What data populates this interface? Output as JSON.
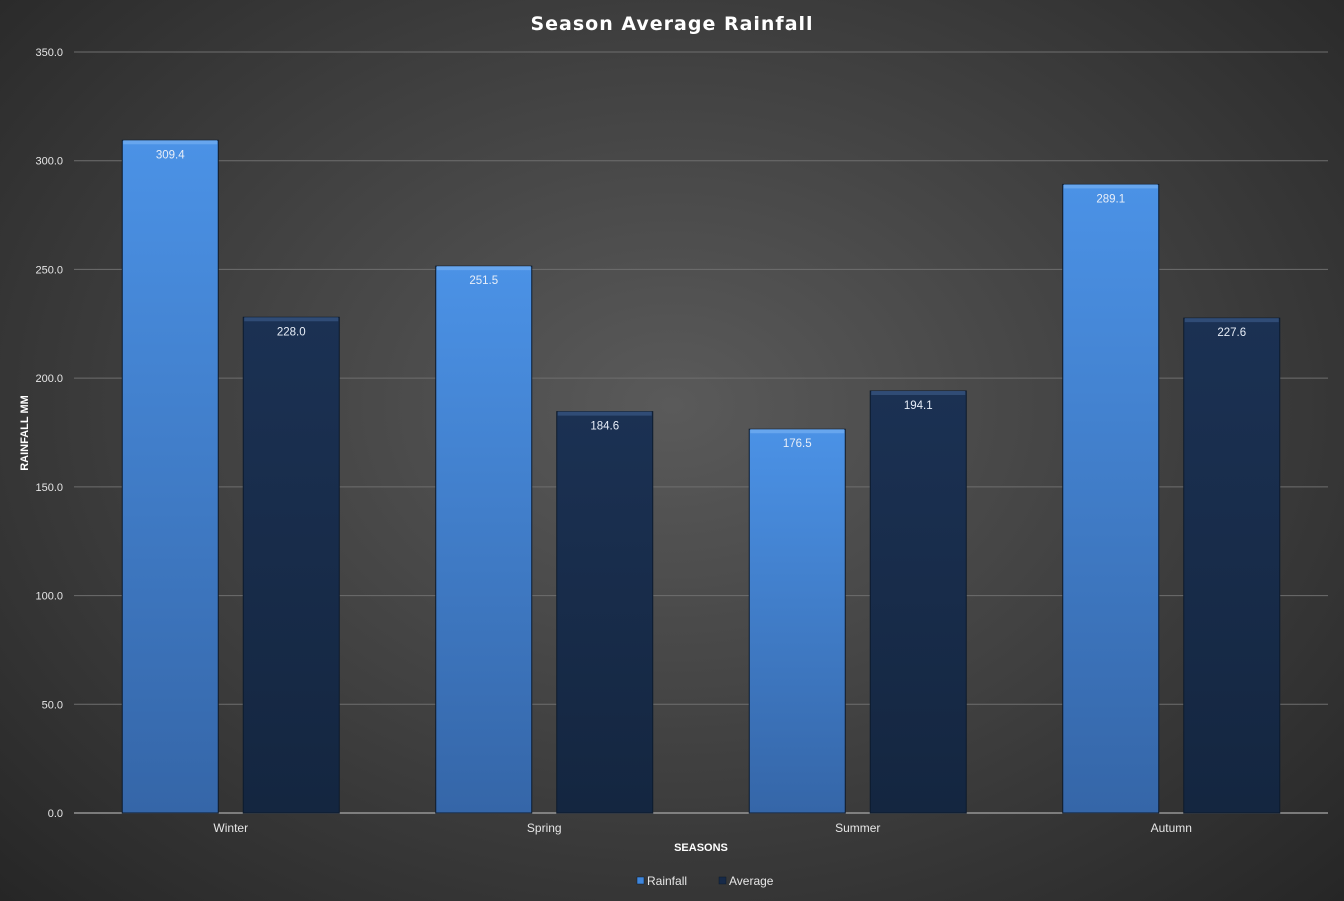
{
  "chart_data": {
    "type": "bar",
    "title": "Season Average Rainfall",
    "xlabel": "SEASONS",
    "ylabel": "RAINFALL MM",
    "categories": [
      "Winter",
      "Spring",
      "Summer",
      "Autumn"
    ],
    "series": [
      {
        "name": "Rainfall",
        "values": [
          309.4,
          251.5,
          176.5,
          289.1
        ],
        "color": "#3f86dc"
      },
      {
        "name": "Average",
        "values": [
          228.0,
          184.6,
          194.1,
          227.6
        ],
        "color": "#172a48"
      }
    ],
    "ylim": [
      0,
      350
    ],
    "yticks": [
      "0.0",
      "50.0",
      "100.0",
      "150.0",
      "200.0",
      "250.0",
      "300.0",
      "350.0"
    ],
    "data_labels": true,
    "grid": true,
    "legend": "bottom"
  }
}
